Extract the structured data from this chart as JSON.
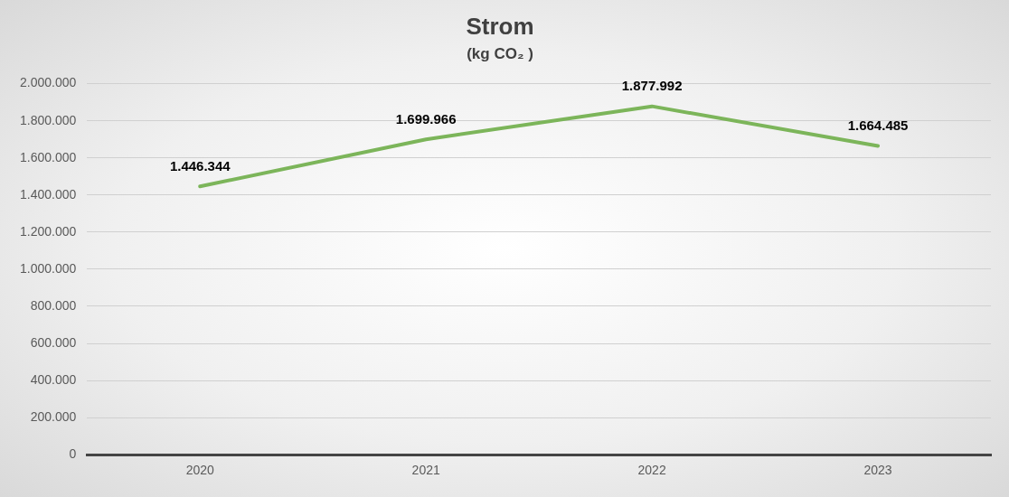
{
  "chart_data": {
    "type": "line",
    "title": "Strom",
    "subtitle": "(kg CO₂ )",
    "categories": [
      "2020",
      "2021",
      "2022",
      "2023"
    ],
    "series": [
      {
        "color": "#7cb55a",
        "values": [
          1446344,
          1699966,
          1877992,
          1664485
        ],
        "value_labels": [
          "1.446.344",
          "1.699.966",
          "1.877.992",
          "1.664.485"
        ]
      }
    ],
    "ylim": [
      0,
      2000000
    ],
    "yticks": [
      {
        "value": 0,
        "label": "0"
      },
      {
        "value": 200000,
        "label": "200.000"
      },
      {
        "value": 400000,
        "label": "400.000"
      },
      {
        "value": 600000,
        "label": "600.000"
      },
      {
        "value": 800000,
        "label": "800.000"
      },
      {
        "value": 1000000,
        "label": "1.000.000"
      },
      {
        "value": 1200000,
        "label": "1.200.000"
      },
      {
        "value": 1400000,
        "label": "1.400.000"
      },
      {
        "value": 1600000,
        "label": "1.600.000"
      },
      {
        "value": 1800000,
        "label": "1.800.000"
      },
      {
        "value": 2000000,
        "label": "2.000.000"
      }
    ],
    "grid": "y",
    "legend": false,
    "marker": "none",
    "line_style": "solid"
  }
}
